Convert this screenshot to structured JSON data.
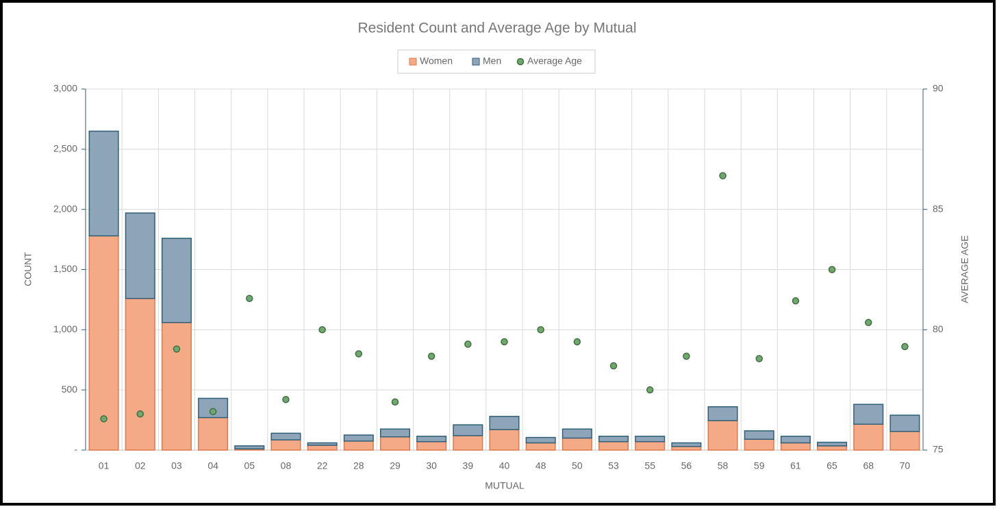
{
  "chart_data": {
    "type": "bar",
    "stacked": true,
    "title": "Resident Count and Average Age by Mutual",
    "x_label": "MUTUAL",
    "y_label": "COUNT",
    "y2_label": "AVERAGE AGE",
    "categories": [
      "01",
      "02",
      "03",
      "04",
      "05",
      "08",
      "22",
      "28",
      "29",
      "30",
      "39",
      "40",
      "48",
      "50",
      "53",
      "55",
      "56",
      "58",
      "59",
      "61",
      "65",
      "68",
      "70"
    ],
    "series": [
      {
        "name": "Women",
        "color": "#f4a987",
        "border": "#e07848",
        "values": [
          1780,
          1260,
          1060,
          270,
          10,
          85,
          40,
          75,
          110,
          70,
          120,
          170,
          60,
          100,
          70,
          70,
          30,
          245,
          90,
          60,
          35,
          215,
          155
        ]
      },
      {
        "name": "Men",
        "color": "#8ea5b9",
        "border": "#2e5e78",
        "values": [
          870,
          710,
          700,
          160,
          25,
          55,
          20,
          50,
          65,
          45,
          90,
          110,
          45,
          75,
          45,
          45,
          30,
          115,
          70,
          55,
          30,
          165,
          135
        ]
      },
      {
        "name": "Average Age",
        "type": "scatter",
        "axis": "y2",
        "color": "#70a870",
        "border": "#3f6f3f",
        "values": [
          76.3,
          76.5,
          79.2,
          76.6,
          81.3,
          77.1,
          80.0,
          79.0,
          77.0,
          78.9,
          79.4,
          79.5,
          80.0,
          79.5,
          78.5,
          77.5,
          78.9,
          86.4,
          78.8,
          81.2,
          82.5,
          80.3,
          79.3
        ]
      }
    ],
    "ylim": [
      0,
      3000
    ],
    "yticks": [
      {
        "value": 0,
        "label": "-"
      },
      500,
      {
        "value": 1000,
        "label": "1,000"
      },
      {
        "value": 1500,
        "label": "1,500"
      },
      {
        "value": 2000,
        "label": "2,000"
      },
      {
        "value": 2500,
        "label": "2,500"
      },
      {
        "value": 3000,
        "label": "3,000"
      }
    ],
    "y2lim": [
      75,
      90
    ],
    "y2ticks": [
      75,
      80,
      85,
      90
    ],
    "grid": true,
    "legend": "top"
  }
}
